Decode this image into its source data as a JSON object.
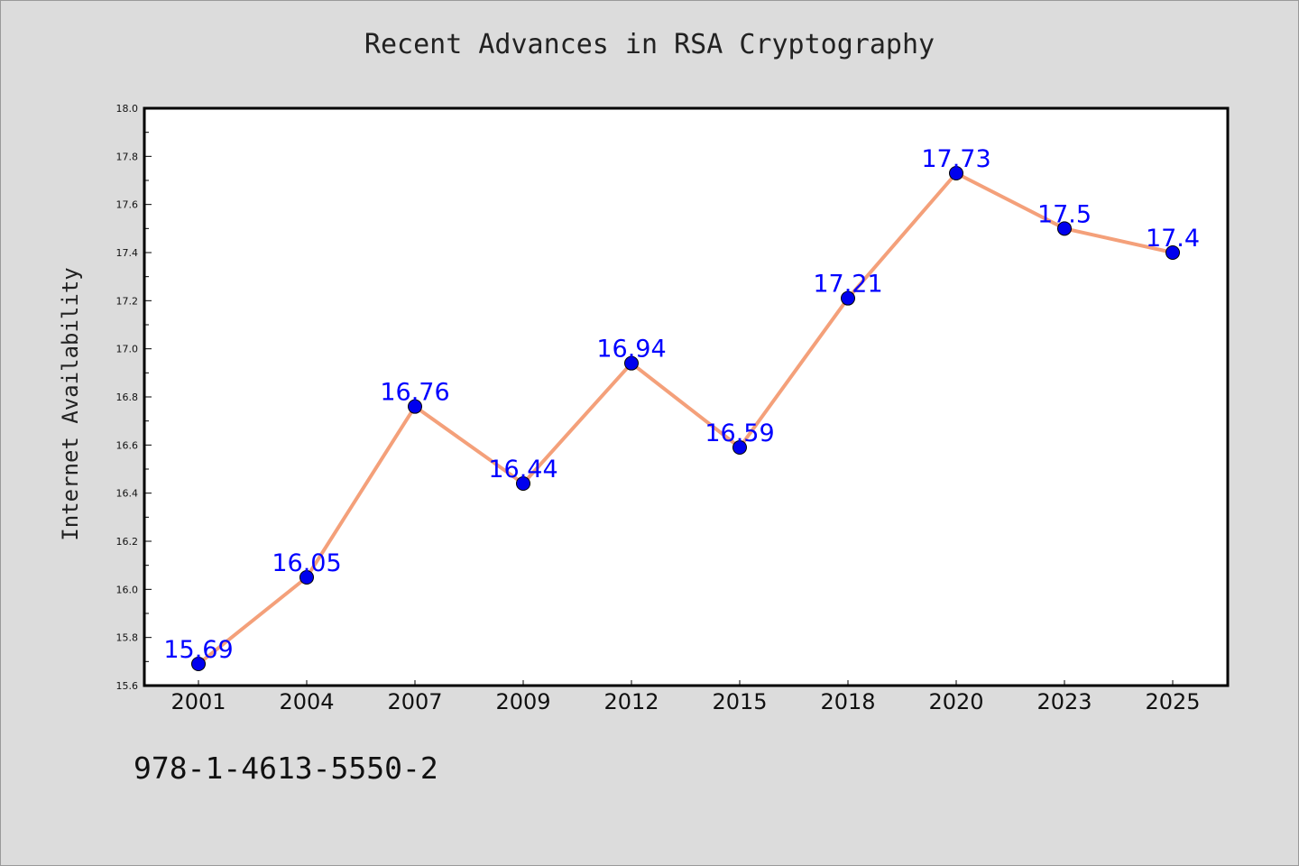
{
  "title": "Recent Advances in RSA Cryptography",
  "footnote": "978-1-4613-5550-2",
  "chart_data": {
    "type": "line",
    "title": "Recent Advances in RSA Cryptography",
    "xlabel": "",
    "ylabel": "Internet Availability",
    "categories": [
      "2001",
      "2004",
      "2007",
      "2009",
      "2012",
      "2015",
      "2018",
      "2020",
      "2023",
      "2025"
    ],
    "series": [
      {
        "values": [
          15.69,
          16.05,
          16.76,
          16.44,
          16.94,
          16.59,
          17.21,
          17.73,
          17.5,
          17.4
        ],
        "line_color": "#f4a07a",
        "marker_color": "#0000ee"
      }
    ],
    "data_labels": [
      "15.69",
      "16.05",
      "16.76",
      "16.44",
      "16.94",
      "16.59",
      "17.21",
      "17.73",
      "17.5",
      "17.4"
    ],
    "ylim": [
      15.6,
      18.0
    ],
    "y_ticks": [
      "15.6",
      "15.8",
      "16.0",
      "16.2",
      "16.4",
      "16.6",
      "16.8",
      "17.0",
      "17.2",
      "17.4",
      "17.6",
      "17.8",
      "18.0"
    ],
    "grid": false,
    "legend": "none",
    "label_color": "#0000ff",
    "plot_background": "#ffffff",
    "figure_background": "#dcdcdc"
  }
}
